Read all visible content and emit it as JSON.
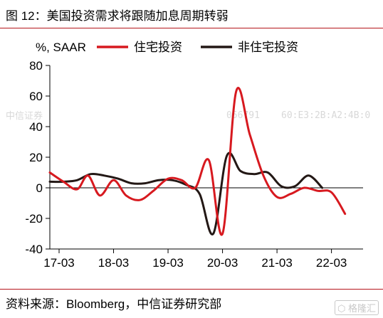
{
  "header": {
    "title": "图 12：美国投资需求将跟随加息周期转弱"
  },
  "footer": {
    "source": "资料来源：Bloomberg，中信证券研究部"
  },
  "watermarks": {
    "left": "中信证券",
    "mid": "056791",
    "code": "60:E3:2B:A2:4B:0",
    "logo": "格隆汇",
    "logo_icon": "hexagon-logo-icon"
  },
  "colors": {
    "series_red": "#d7191f",
    "series_dark": "#231815",
    "accent": "#b5151b"
  },
  "chart_data": {
    "type": "line",
    "ylabel": "%, SAAR",
    "ylim": [
      -40,
      80
    ],
    "yticks": [
      -40,
      -20,
      0,
      20,
      40,
      60,
      80
    ],
    "xlim": [
      2017.0,
      2022.75
    ],
    "xticks": [
      {
        "label": "17-03",
        "x": 2017.17
      },
      {
        "label": "18-03",
        "x": 2018.17
      },
      {
        "label": "19-03",
        "x": 2019.17
      },
      {
        "label": "20-03",
        "x": 2020.17
      },
      {
        "label": "21-03",
        "x": 2021.17
      },
      {
        "label": "22-03",
        "x": 2022.17
      }
    ],
    "grid": false,
    "legend": "top",
    "series": [
      {
        "name": "住宅投资",
        "color": "#d7191f",
        "points": [
          [
            2017.0,
            10
          ],
          [
            2017.25,
            4
          ],
          [
            2017.5,
            -1
          ],
          [
            2017.7,
            8
          ],
          [
            2017.92,
            -5
          ],
          [
            2018.17,
            5
          ],
          [
            2018.4,
            -5
          ],
          [
            2018.65,
            -8
          ],
          [
            2018.9,
            -2
          ],
          [
            2019.17,
            6
          ],
          [
            2019.42,
            5
          ],
          [
            2019.67,
            0
          ],
          [
            2019.92,
            18
          ],
          [
            2020.17,
            -30
          ],
          [
            2020.42,
            63
          ],
          [
            2020.67,
            35
          ],
          [
            2020.92,
            8
          ],
          [
            2021.17,
            -6
          ],
          [
            2021.42,
            -4
          ],
          [
            2021.67,
            0
          ],
          [
            2021.92,
            -2
          ],
          [
            2022.17,
            -3
          ],
          [
            2022.42,
            -17
          ]
        ]
      },
      {
        "name": "非住宅投资",
        "color": "#231815",
        "points": [
          [
            2017.0,
            4
          ],
          [
            2017.25,
            4
          ],
          [
            2017.5,
            5
          ],
          [
            2017.75,
            9
          ],
          [
            2018.0,
            8
          ],
          [
            2018.25,
            6
          ],
          [
            2018.5,
            3
          ],
          [
            2018.75,
            3
          ],
          [
            2019.0,
            5
          ],
          [
            2019.25,
            5
          ],
          [
            2019.5,
            2
          ],
          [
            2019.75,
            -4
          ],
          [
            2020.0,
            -30
          ],
          [
            2020.25,
            21
          ],
          [
            2020.5,
            11
          ],
          [
            2020.75,
            9
          ],
          [
            2021.0,
            10
          ],
          [
            2021.25,
            1
          ],
          [
            2021.5,
            1
          ],
          [
            2021.75,
            8
          ],
          [
            2022.0,
            0
          ]
        ]
      }
    ]
  }
}
